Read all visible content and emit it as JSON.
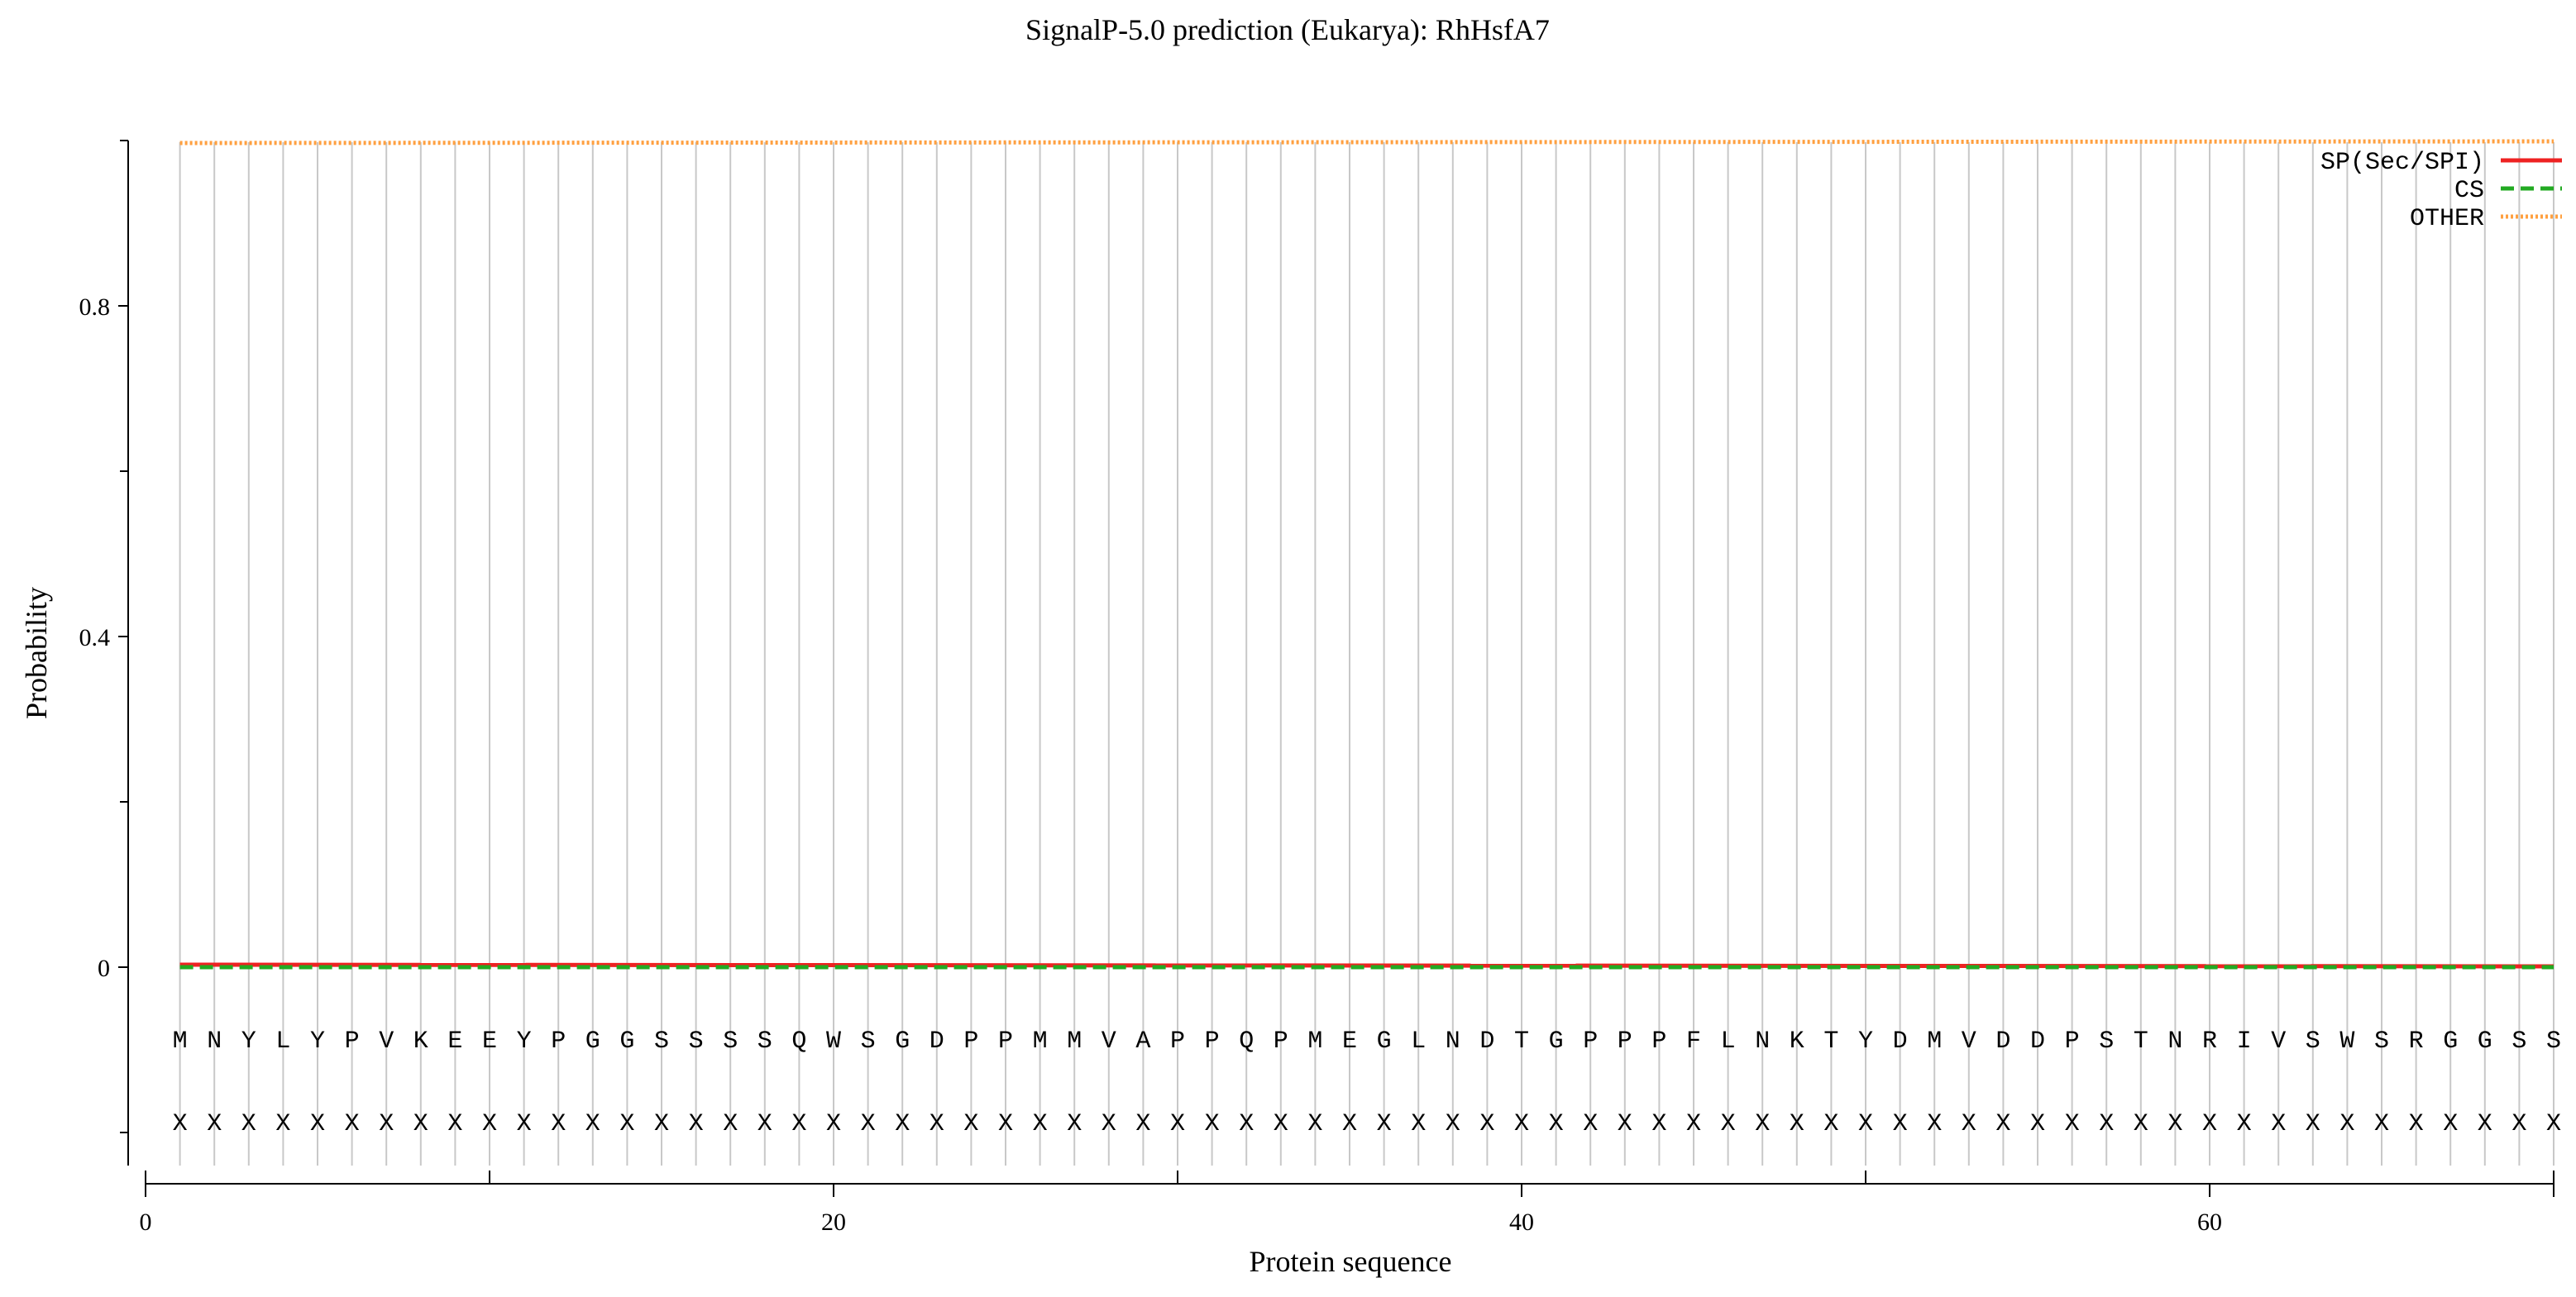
{
  "chart_data": {
    "type": "line",
    "title": "SignalP-5.0 prediction (Eukarya):  RhHsfA7",
    "xlabel": "Protein sequence",
    "ylabel": "Probability",
    "xlim": [
      0,
      70
    ],
    "ylim": [
      -0.25,
      1.0
    ],
    "x_ticks": [
      0,
      20,
      40,
      60
    ],
    "x_minor_ticks": [
      10,
      30,
      50
    ],
    "y_ticks": [
      0,
      0.4,
      0.8
    ],
    "y_tick_labels": [
      "0",
      "0.4",
      "0.8"
    ],
    "y_minor_ticks": [
      -0.2,
      0.2,
      0.6,
      1.0
    ],
    "grid": "vertical line at each residue position",
    "legend_position": "top-right",
    "sequence_row_y": -0.086,
    "annotation_row_y": -0.186,
    "sequence": [
      "M",
      "N",
      "Y",
      "L",
      "Y",
      "P",
      "V",
      "K",
      "E",
      "E",
      "Y",
      "P",
      "G",
      "G",
      "S",
      "S",
      "S",
      "S",
      "Q",
      "W",
      "S",
      "G",
      "D",
      "P",
      "P",
      "M",
      "M",
      "V",
      "A",
      "P",
      "P",
      "Q",
      "P",
      "M",
      "E",
      "G",
      "L",
      "N",
      "D",
      "T",
      "G",
      "P",
      "P",
      "P",
      "F",
      "L",
      "N",
      "K",
      "T",
      "Y",
      "D",
      "M",
      "V",
      "D",
      "D",
      "P",
      "S",
      "T",
      "N",
      "R",
      "I",
      "V",
      "S",
      "W",
      "S",
      "R",
      "G",
      "G",
      "S",
      "S"
    ],
    "annotation": [
      "X",
      "X",
      "X",
      "X",
      "X",
      "X",
      "X",
      "X",
      "X",
      "X",
      "X",
      "X",
      "X",
      "X",
      "X",
      "X",
      "X",
      "X",
      "X",
      "X",
      "X",
      "X",
      "X",
      "X",
      "X",
      "X",
      "X",
      "X",
      "X",
      "X",
      "X",
      "X",
      "X",
      "X",
      "X",
      "X",
      "X",
      "X",
      "X",
      "X",
      "X",
      "X",
      "X",
      "X",
      "X",
      "X",
      "X",
      "X",
      "X",
      "X",
      "X",
      "X",
      "X",
      "X",
      "X",
      "X",
      "X",
      "X",
      "X",
      "X",
      "X",
      "X",
      "X",
      "X",
      "X",
      "X",
      "X",
      "X",
      "X",
      "X"
    ],
    "series": [
      {
        "name": "SP(Sec/SPI)",
        "color": "#ee2222",
        "style": "solid",
        "x": [
          1,
          70
        ],
        "y": [
          0.003,
          0.001
        ]
      },
      {
        "name": "CS",
        "color": "#22aa22",
        "style": "dashed",
        "x": [
          1,
          70
        ],
        "y": [
          0.0,
          0.0
        ]
      },
      {
        "name": "OTHER",
        "color": "#ffa040",
        "style": "dotted",
        "x": [
          1,
          70
        ],
        "y": [
          0.997,
          0.999
        ]
      }
    ]
  }
}
